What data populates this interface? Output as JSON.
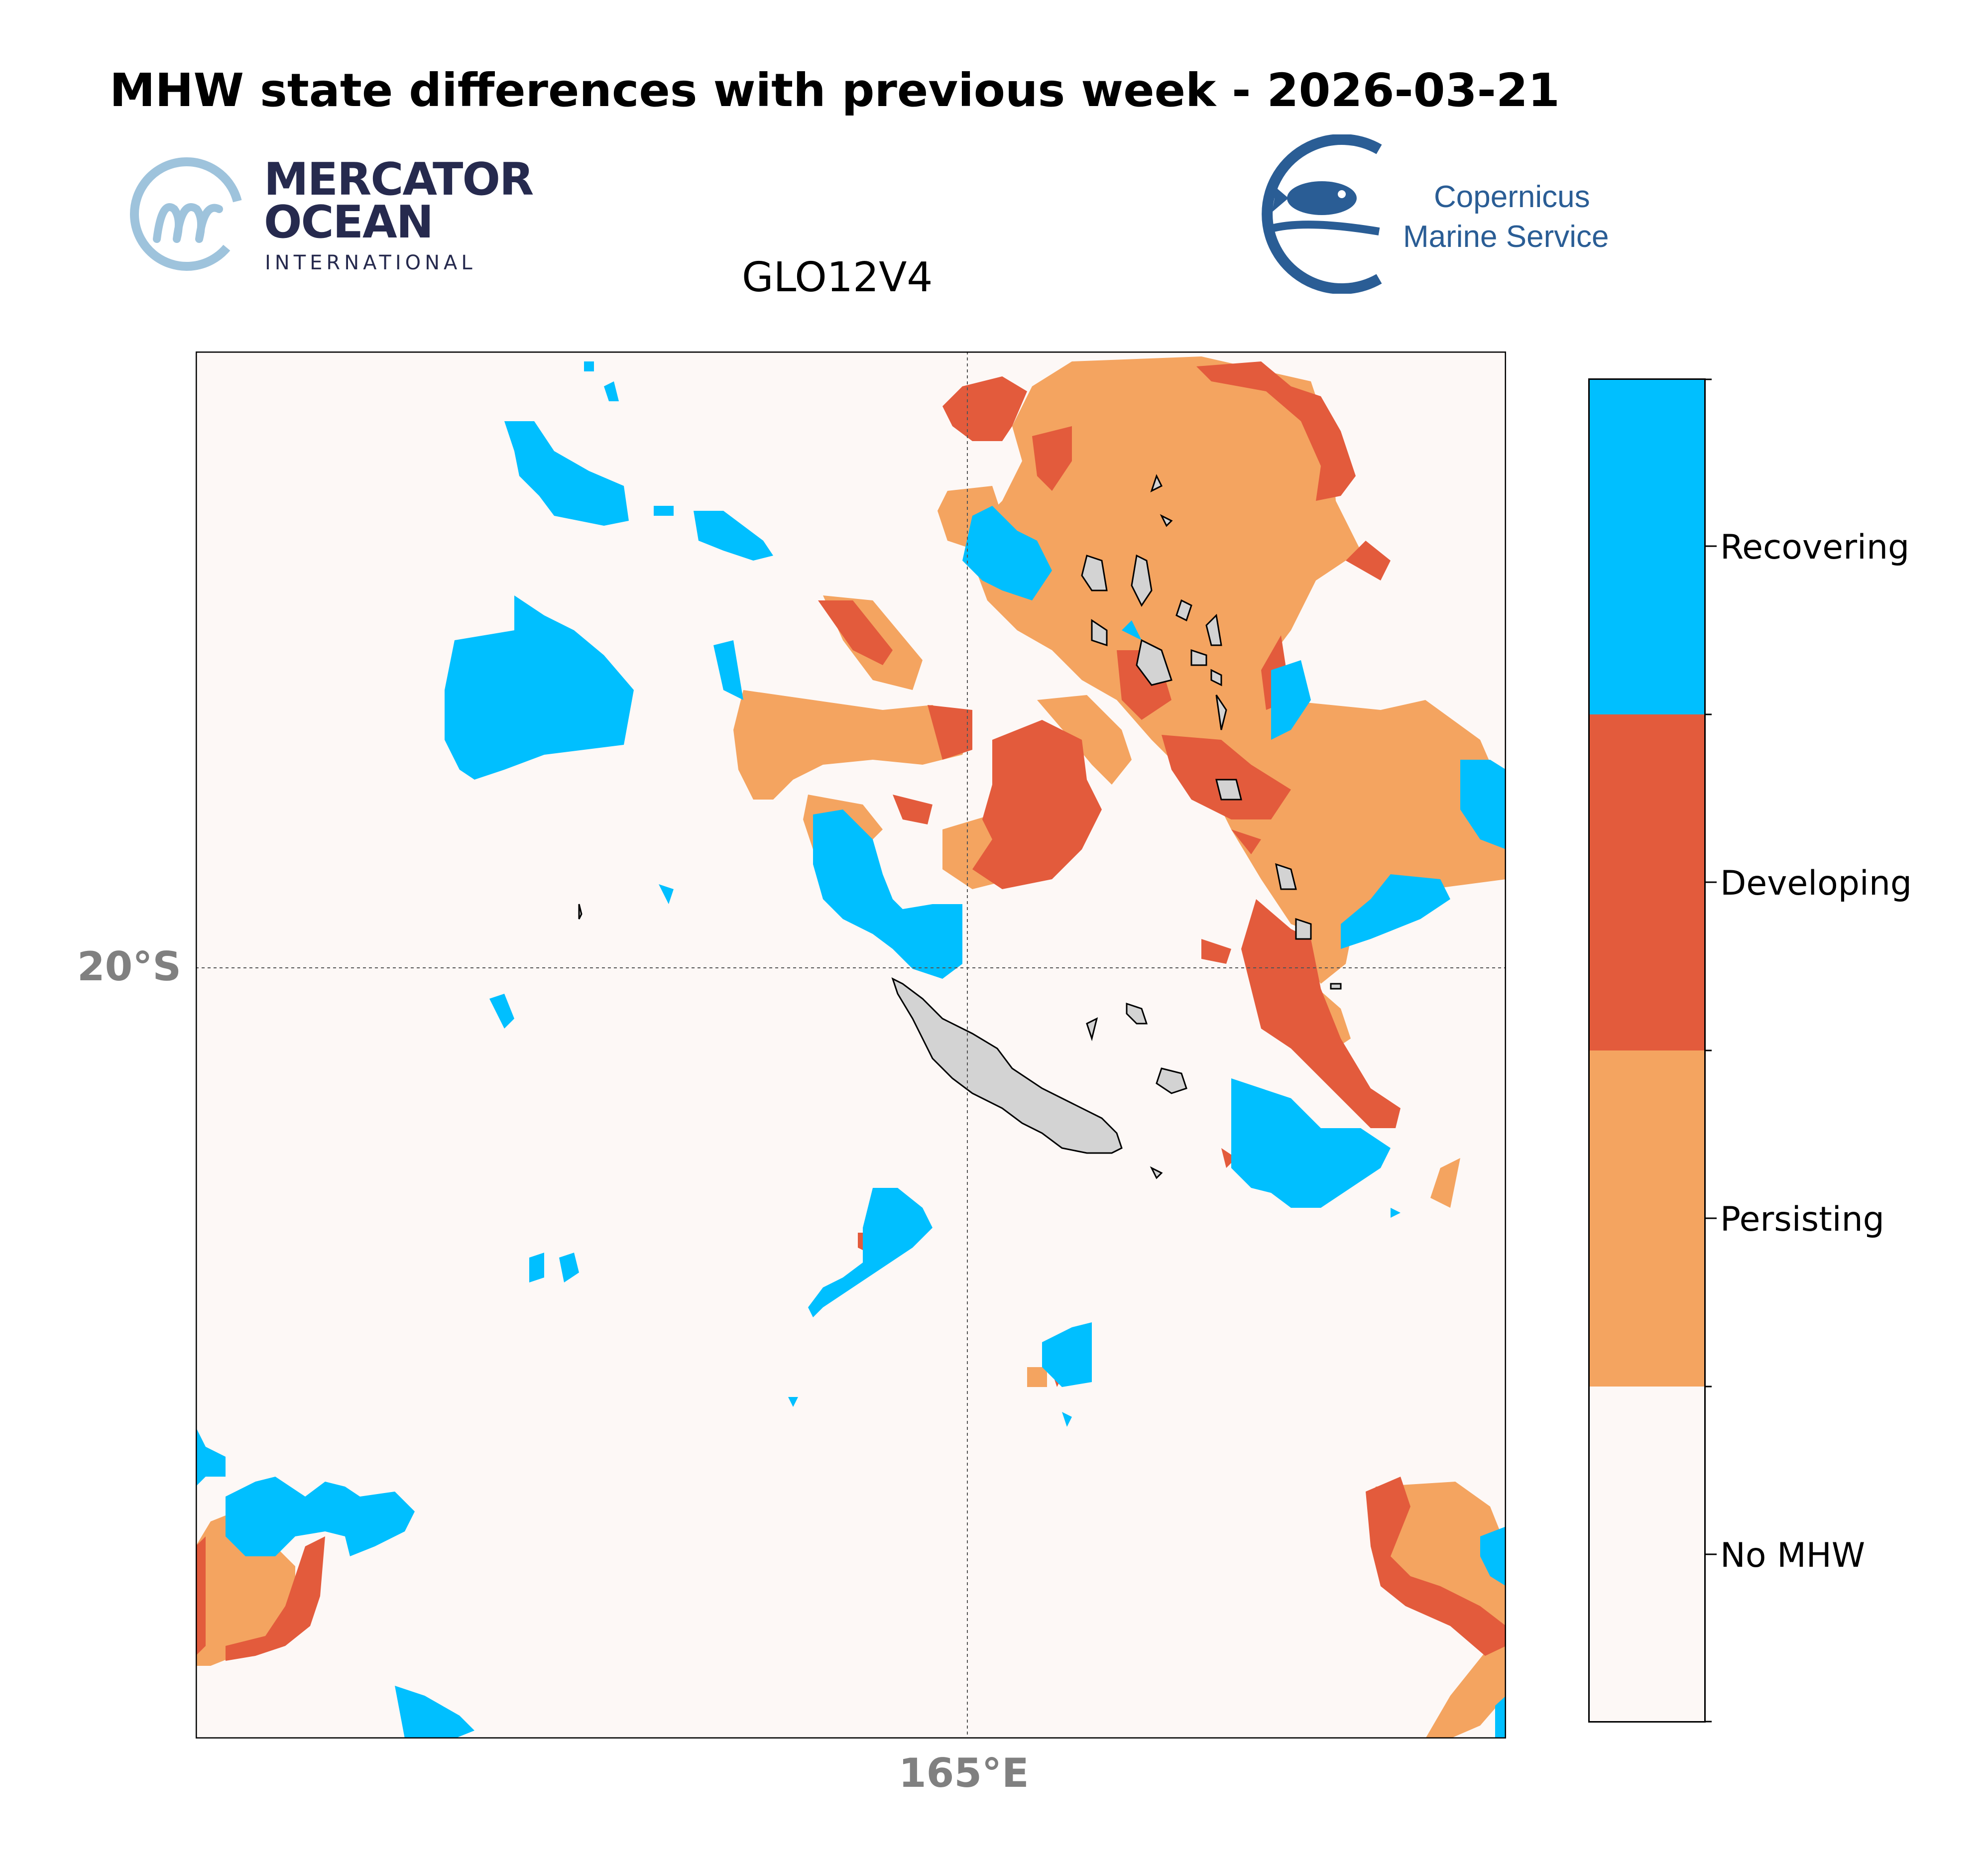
{
  "title": "MHW state differences with previous week - 2026-03-21",
  "subtitle": "GLO12V4",
  "logos": {
    "mercator_line1": "MERCATOR",
    "mercator_line2": "OCEAN",
    "mercator_line3": "INTERNATIONAL",
    "copernicus_line1": "Copernicus",
    "copernicus_line2": "Marine Service"
  },
  "map": {
    "lat_label": "20°S",
    "lon_label": "165°E",
    "colors": {
      "no_mhw": "#fdf8f6",
      "persisting": "#f4a460",
      "developing": "#e35b3c",
      "recovering": "#00bfff",
      "land": "#d3d3d3"
    }
  },
  "legend": {
    "categories": [
      "Recovering",
      "Developing",
      "Persisting",
      "No MHW"
    ],
    "colors": [
      "#00bfff",
      "#e35b3c",
      "#f4a460",
      "#fdf8f6"
    ]
  }
}
